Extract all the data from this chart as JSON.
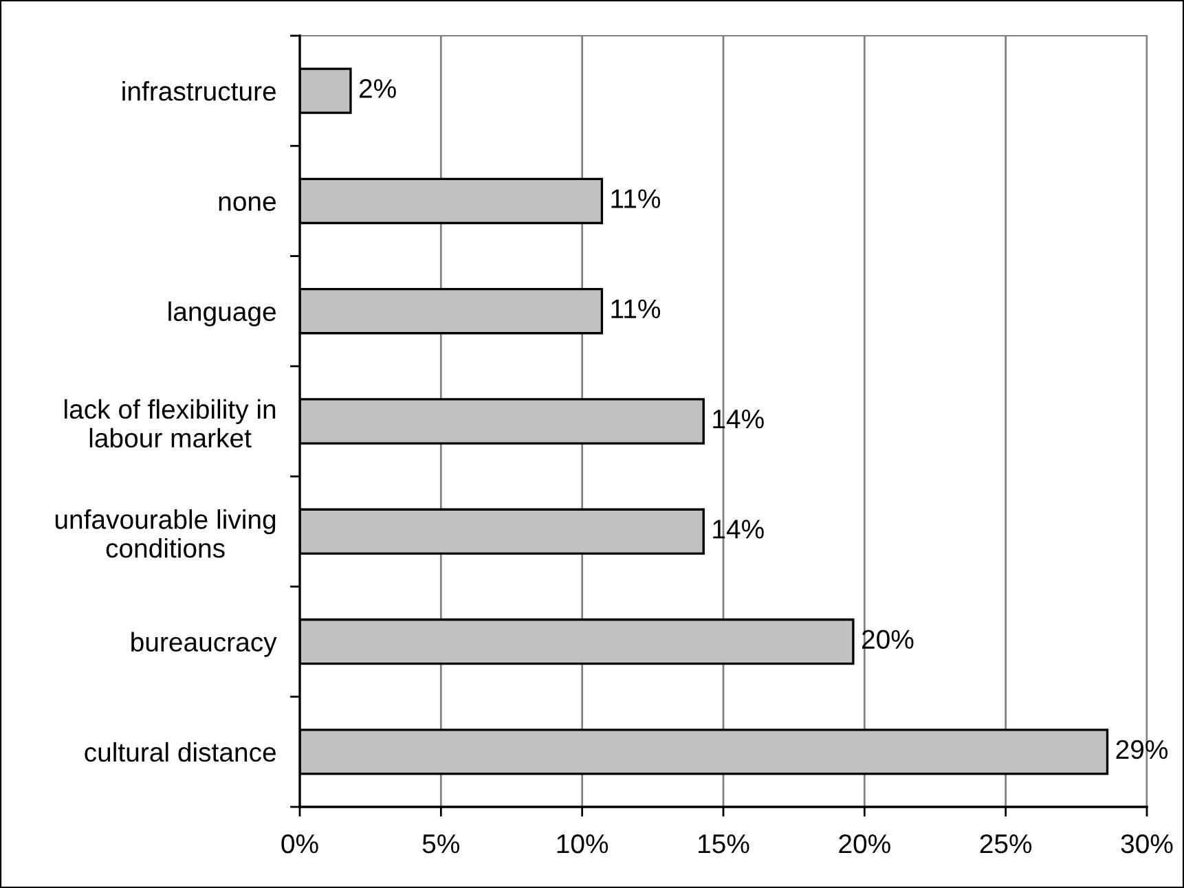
{
  "chart_data": {
    "type": "bar",
    "orientation": "horizontal",
    "categories": [
      "infrastructure",
      "none",
      "language",
      "lack of flexibility in\nlabour market",
      "unfavourable living\nconditions",
      "bureaucracy",
      "cultural distance"
    ],
    "values": [
      1.8,
      10.7,
      10.7,
      14.3,
      14.3,
      19.6,
      28.6
    ],
    "color": "#c0c0c0",
    "value_labels": [
      "2%",
      "11%",
      "11%",
      "14%",
      "14%",
      "20%",
      "29%"
    ],
    "xlim": [
      0,
      30
    ],
    "xticks": [
      {
        "value": 0,
        "label": "0%"
      },
      {
        "value": 5,
        "label": "5%"
      },
      {
        "value": 10,
        "label": "10%"
      },
      {
        "value": 15,
        "label": "15%"
      },
      {
        "value": 20,
        "label": "20%"
      },
      {
        "value": 25,
        "label": "25%"
      },
      {
        "value": 30,
        "label": "30%"
      }
    ],
    "grid": "x"
  }
}
